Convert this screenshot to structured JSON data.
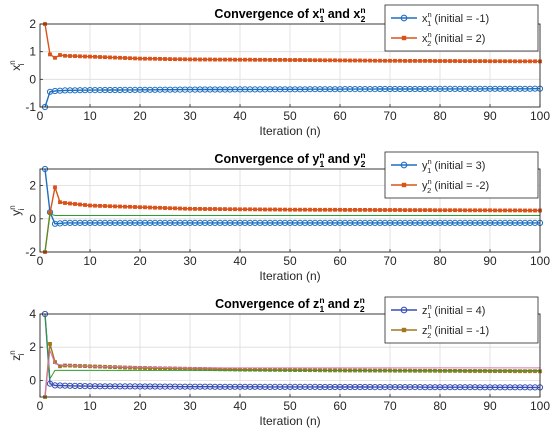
{
  "chart_data": [
    {
      "type": "line",
      "title": {
        "base": "Convergence of ",
        "v1": "x",
        "s1": "1",
        "mid": " and ",
        "v2": "x",
        "s2": "2",
        "sup": "n"
      },
      "xlabel": "Iteration (n)",
      "ylabel": {
        "base": "x",
        "sup": "n",
        "sub": "i"
      },
      "xlim": [
        0,
        100
      ],
      "ylim": [
        -1,
        2
      ],
      "xticks": [
        0,
        10,
        20,
        30,
        40,
        50,
        60,
        70,
        80,
        90,
        100
      ],
      "yticks": [
        -1,
        0,
        1,
        2
      ],
      "legend": "top-right",
      "series": [
        {
          "name": {
            "var": "x",
            "sup": "n",
            "sub": "1",
            "text": " (initial = -1)"
          },
          "color": "#1f6fc0",
          "marker": "circle",
          "x": [
            1,
            2,
            3,
            5,
            10,
            20,
            30,
            50,
            70,
            100
          ],
          "y": [
            -1,
            -0.45,
            -0.42,
            -0.4,
            -0.39,
            -0.38,
            -0.37,
            -0.36,
            -0.35,
            -0.34
          ]
        },
        {
          "name": {
            "var": "x",
            "sup": "n",
            "sub": "2",
            "text": " (initial = 2)"
          },
          "color": "#d95319",
          "marker": "square",
          "x": [
            1,
            2,
            3,
            4,
            5,
            10,
            20,
            30,
            50,
            70,
            100
          ],
          "y": [
            2,
            0.9,
            0.78,
            0.88,
            0.85,
            0.82,
            0.75,
            0.72,
            0.7,
            0.67,
            0.65
          ]
        }
      ]
    },
    {
      "type": "line",
      "title": {
        "base": "Convergence of ",
        "v1": "y",
        "s1": "1",
        "mid": " and ",
        "v2": "y",
        "s2": "2",
        "sup": "n"
      },
      "xlabel": "Iteration (n)",
      "ylabel": {
        "base": "y",
        "sup": "n",
        "sub": "i"
      },
      "xlim": [
        0,
        100
      ],
      "ylim": [
        -2,
        3
      ],
      "xticks": [
        0,
        10,
        20,
        30,
        40,
        50,
        60,
        70,
        80,
        90,
        100
      ],
      "yticks": [
        -2,
        0,
        2
      ],
      "legend": "top-right",
      "series": [
        {
          "name": {
            "var": "y",
            "sup": "n",
            "sub": "1",
            "text": " (initial = 3)"
          },
          "color": "#1f6fc0",
          "marker": "circle",
          "x": [
            1,
            2,
            3,
            5,
            10,
            30,
            100
          ],
          "y": [
            3,
            0.4,
            -0.3,
            -0.25,
            -0.25,
            -0.25,
            -0.25
          ]
        },
        {
          "name": {
            "var": "y",
            "sup": "n",
            "sub": "2",
            "text": " (initial = -2)"
          },
          "color": "#d95319",
          "marker": "square",
          "x": [
            1,
            2,
            3,
            4,
            5,
            10,
            20,
            30,
            50,
            100
          ],
          "y": [
            -2,
            0.35,
            1.9,
            1.0,
            0.95,
            0.8,
            0.7,
            0.6,
            0.55,
            0.5
          ]
        },
        {
          "name": null,
          "color": "#2ca02c",
          "marker": "none",
          "x": [
            1,
            2,
            3
          ],
          "y": [
            -2,
            0.3,
            0.2
          ]
        }
      ]
    },
    {
      "type": "line",
      "title": {
        "base": "Convergence of ",
        "v1": "z",
        "s1": "1",
        "mid": " and ",
        "v2": "z",
        "s2": "2",
        "sup": "n"
      },
      "xlabel": "Iteration (n)",
      "ylabel": {
        "base": "z",
        "sup": "n",
        "sub": "i"
      },
      "xlim": [
        0,
        100
      ],
      "ylim": [
        -1,
        4
      ],
      "xticks": [
        0,
        10,
        20,
        30,
        40,
        50,
        60,
        70,
        80,
        90,
        100
      ],
      "yticks": [
        0,
        2,
        4
      ],
      "legend": "top-right",
      "series": [
        {
          "name": {
            "var": "z",
            "sup": "n",
            "sub": "1",
            "text": " (initial = 4)"
          },
          "color": "#3a4fb5",
          "marker": "circle",
          "x": [
            1,
            2,
            3,
            5,
            10,
            30,
            100
          ],
          "y": [
            4,
            -0.2,
            -0.3,
            -0.32,
            -0.35,
            -0.38,
            -0.42
          ]
        },
        {
          "name": {
            "var": "z",
            "sup": "n",
            "sub": "2",
            "text": " (initial = -1)"
          },
          "color": "#a07820",
          "marker": "square",
          "x": [
            1,
            2,
            3,
            4,
            5,
            10,
            20,
            40,
            60,
            100
          ],
          "y": [
            -1,
            2.2,
            1.1,
            0.85,
            0.9,
            0.85,
            0.75,
            0.65,
            0.6,
            0.55
          ]
        },
        {
          "name": null,
          "color": "#2ca02c",
          "marker": "none",
          "x": [
            1,
            2,
            3
          ],
          "y": [
            4,
            0.1,
            0.6
          ]
        },
        {
          "name": null,
          "color": "#e070c0",
          "marker": "none",
          "x": [
            1,
            2,
            3,
            5,
            10,
            20,
            30
          ],
          "y": [
            -0.9,
            1.8,
            1.0,
            0.9,
            0.85,
            0.8,
            0.75
          ]
        }
      ]
    }
  ]
}
